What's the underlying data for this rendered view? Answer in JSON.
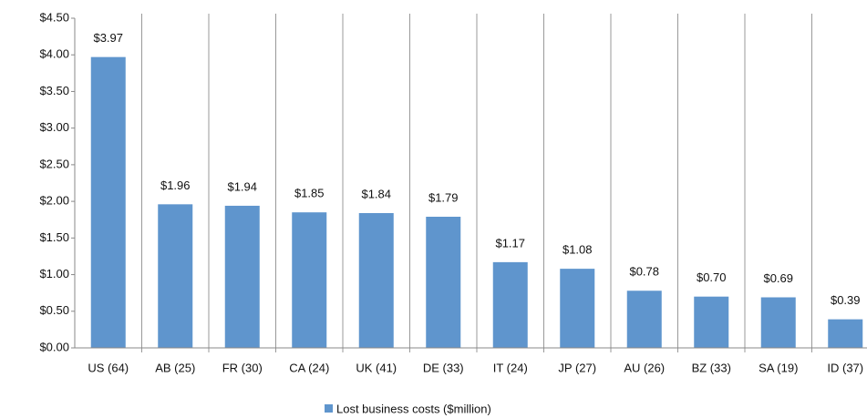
{
  "chart_data": {
    "type": "bar",
    "categories": [
      "US (64)",
      "AB (25)",
      "FR (30)",
      "CA (24)",
      "UK (41)",
      "DE (33)",
      "IT (24)",
      "JP (27)",
      "AU (26)",
      "BZ (33)",
      "SA (19)",
      "ID (37)"
    ],
    "series": [
      {
        "name": "Lost business costs ($million)",
        "color": "#5f95cd",
        "values": [
          3.97,
          1.96,
          1.94,
          1.85,
          1.84,
          1.79,
          1.17,
          1.08,
          0.78,
          0.7,
          0.69,
          0.39
        ],
        "value_labels": [
          "$3.97",
          "$1.96",
          "$1.94",
          "$1.85",
          "$1.84",
          "$1.79",
          "$1.17",
          "$1.08",
          "$0.78",
          "$0.70",
          "$0.69",
          "$0.39"
        ]
      }
    ],
    "ylim": [
      0,
      4.5
    ],
    "yticks": [
      {
        "value": 0,
        "label": "$0.00"
      },
      {
        "value": 0.5,
        "label": "$0.50"
      },
      {
        "value": 1,
        "label": "$1.00"
      },
      {
        "value": 1.5,
        "label": "$1.50"
      },
      {
        "value": 2,
        "label": "$2.00"
      },
      {
        "value": 2.5,
        "label": "$2.50"
      },
      {
        "value": 3,
        "label": "$3.00"
      },
      {
        "value": 3.5,
        "label": "$3.50"
      },
      {
        "value": 4,
        "label": "$4.00"
      },
      {
        "value": 4.5,
        "label": "$4.50"
      }
    ],
    "legend": "bottom"
  }
}
